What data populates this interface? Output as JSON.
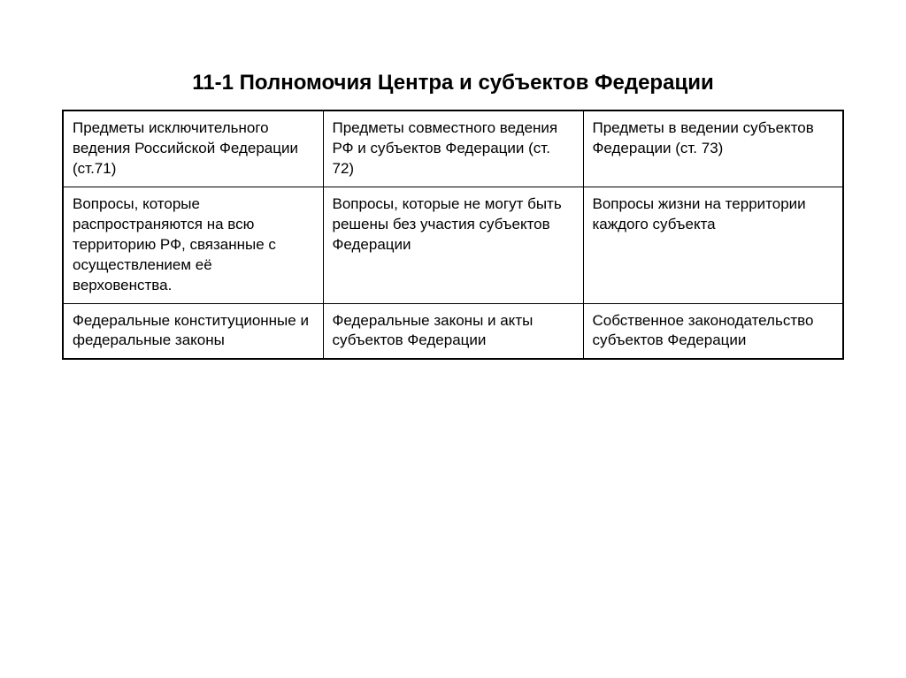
{
  "title": "11-1 Полномочия Центра и субъектов Федерации",
  "table": {
    "rows": [
      [
        "Предметы исключительного ведения  Российской Федерации (ст.71)",
        "Предметы совместного ведения РФ и субъектов Федерации (ст. 72)",
        "Предметы в ведении субъектов Федерации (ст. 73)"
      ],
      [
        "Вопросы, которые распространяются на всю территорию РФ, связанные с осуществлением её верховенства.",
        "Вопросы, которые не могут быть решены без участия субъектов Федерации",
        "Вопросы жизни на территории каждого субъекта"
      ],
      [
        "Федеральные конституционные и федеральные законы",
        "Федеральные законы и акты субъектов Федерации",
        "Собственное законодательство субъектов Федерации"
      ]
    ]
  },
  "styles": {
    "title_fontsize": 24,
    "title_fontweight": "bold",
    "cell_fontsize": 17,
    "border_color": "#000000",
    "text_color": "#000000",
    "background_color": "#ffffff",
    "column_count": 3,
    "row_count": 3,
    "outer_border_width": 2,
    "inner_border_width": 1
  }
}
